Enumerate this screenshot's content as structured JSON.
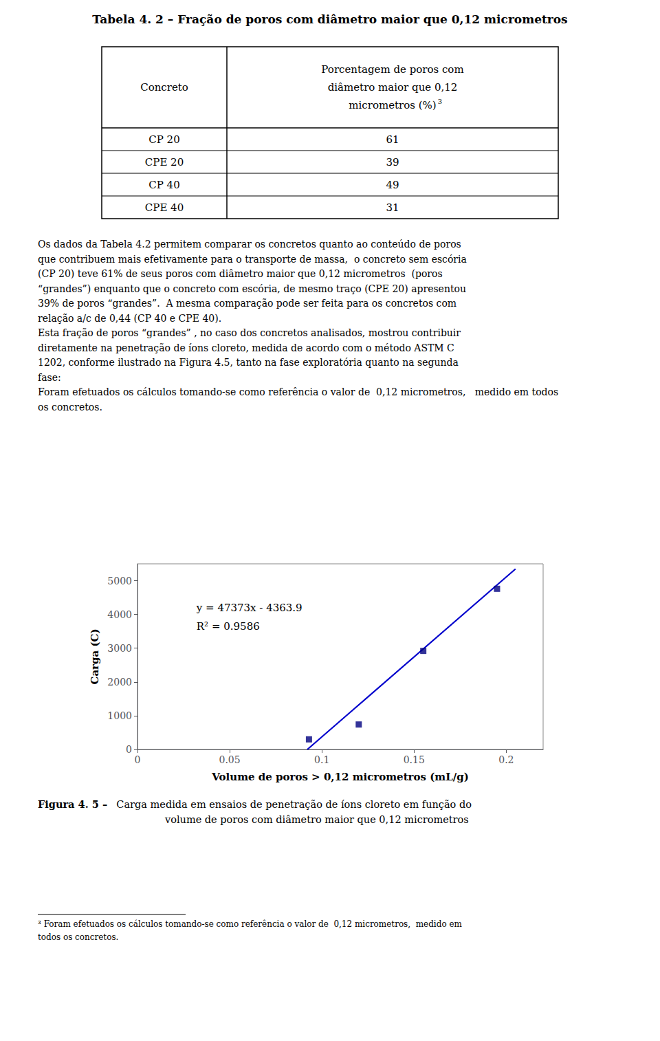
{
  "title": "Tabela 4. 2 – Fração de poros com diâmetro maior que 0,12 micrometros",
  "table": {
    "headers": [
      [
        "Concreto"
      ],
      [
        "Porcentagem de poros com",
        "diâmetro maior que 0,12",
        "micrometros (%)"
      ]
    ],
    "header_superscript": "3",
    "rows": [
      [
        "CP 20",
        "61"
      ],
      [
        "CPE 20",
        "39"
      ],
      [
        "CP 40",
        "49"
      ],
      [
        "CPE 40",
        "31"
      ]
    ]
  },
  "body_text": [
    "Os dados da Tabela 4.2 permitem comparar os concretos quanto ao conteúdo de poros",
    "que contribuem mais efetivamente para o transporte de massa,  o concreto sem escória",
    "(CP 20) teve 61% de seus poros com diâmetro maior que 0,12 micrometros  (poros",
    "“grandes”) enquanto que o concreto com escória, de mesmo traço (CPE 20) apresentou",
    "39% de poros “grandes”.  A mesma comparação pode ser feita para os concretos com",
    "relação a/c de 0,44 (CP 40 e CPE 40).",
    "Esta fração de poros “grandes” , no caso dos concretos analisados, mostrou contribuir",
    "diretamente na penetração de íons cloreto, medida de acordo com o método ASTM C",
    "1202, conforme ilustrado na Figura 4.5, tanto na fase exploratória quanto na segunda",
    "fase:",
    "Foram efetuados os cálculos tomando-se como referência o valor de  0,12 micrometros,   medido em todos",
    "os concretos."
  ],
  "chart_data": {
    "type": "scatter",
    "xlabel": "Volume de poros > 0,12 micrometros (mL/g)",
    "ylabel": "Carga (C)",
    "xlim": [
      0,
      0.22
    ],
    "xticks": [
      0,
      0.05,
      0.1,
      0.15,
      0.2
    ],
    "ylim": [
      0,
      5500
    ],
    "yticks": [
      0,
      1000,
      2000,
      3000,
      4000,
      5000
    ],
    "grid": false,
    "series": [
      {
        "type": "line",
        "x": [
          0.092117873,
          0.205
        ],
        "values": [
          0,
          5347.565
        ],
        "color": "#0000cc"
      },
      {
        "type": "scatter",
        "x": [
          0.093,
          0.12,
          0.155,
          0.195
        ],
        "values": [
          300,
          740,
          2920,
          4760
        ],
        "color": "#000080",
        "marker": "square"
      }
    ],
    "annotations": [
      {
        "text": "y = 47373x - 4363.9",
        "x": 0.032,
        "y": 4050
      },
      {
        "text": "R² = 0.9586",
        "x": 0.032,
        "y": 3500
      }
    ]
  },
  "caption": {
    "label": "Figura 4. 5 –",
    "text": [
      "  Carga medida em ensaios de penetração de íons cloreto em função do",
      "volume de poros com diâmetro maior que 0,12 micrometros"
    ]
  },
  "footnote": [
    "³ Foram efetuados os cálculos tomando-se como referência o valor de  0,12 micrometros,  medido em",
    "todos os concretos."
  ]
}
